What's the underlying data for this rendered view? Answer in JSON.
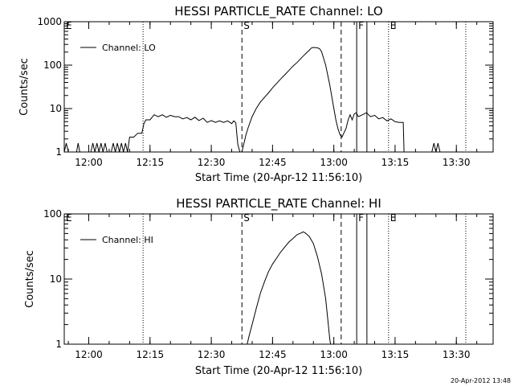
{
  "footer_timestamp": "20-Apr-2012 13:48",
  "chart_data": [
    {
      "type": "line",
      "title": "HESSI PARTICLE_RATE Channel: LO",
      "xlabel": "Start Time (20-Apr-12 11:56:10)",
      "ylabel": "Counts/sec",
      "y_scale": "log",
      "ylim": [
        1,
        1000
      ],
      "xlim_minutes": [
        -6,
        99
      ],
      "x_ticks": [
        {
          "label": "12:00",
          "minutes": 0
        },
        {
          "label": "12:15",
          "minutes": 15
        },
        {
          "label": "12:30",
          "minutes": 30
        },
        {
          "label": "12:45",
          "minutes": 45
        },
        {
          "label": "13:00",
          "minutes": 60
        },
        {
          "label": "13:15",
          "minutes": 75
        },
        {
          "label": "13:30",
          "minutes": 90
        }
      ],
      "y_ticks": [
        {
          "label": "1",
          "value": 1
        },
        {
          "label": "10",
          "value": 10
        },
        {
          "label": "100",
          "value": 100
        },
        {
          "label": "1000",
          "value": 1000
        }
      ],
      "grid": false,
      "legend": {
        "position": "top-left",
        "entries": [
          "Channel: LO"
        ]
      },
      "markers": [
        {
          "label": "E",
          "minutes": -6,
          "style": "dotted"
        },
        {
          "label": "",
          "minutes": 13.3,
          "style": "dotted"
        },
        {
          "label": "S",
          "minutes": 37.5,
          "style": "dashed"
        },
        {
          "label": "",
          "minutes": 61.8,
          "style": "dashed"
        },
        {
          "label": "F",
          "minutes": 65.6,
          "style": "solid"
        },
        {
          "label": "",
          "minutes": 68.1,
          "style": "solid"
        },
        {
          "label": "E",
          "minutes": 73.4,
          "style": "dotted"
        },
        {
          "label": "",
          "minutes": 92.3,
          "style": "dotted"
        }
      ],
      "series": [
        {
          "name": "Channel: LO",
          "points": [
            [
              -6,
              1
            ],
            [
              -5.5,
              1.6
            ],
            [
              -5,
              1
            ],
            [
              -3,
              1
            ],
            [
              -2.6,
              1.6
            ],
            [
              -2.2,
              1
            ],
            [
              0.5,
              1
            ],
            [
              1,
              1.6
            ],
            [
              1.5,
              1
            ],
            [
              2,
              1.6
            ],
            [
              2.5,
              1
            ],
            [
              3,
              1.6
            ],
            [
              3.5,
              1
            ],
            [
              4,
              1.6
            ],
            [
              4.5,
              1
            ],
            [
              5.5,
              1
            ],
            [
              6,
              1.6
            ],
            [
              6.5,
              1
            ],
            [
              7,
              1.6
            ],
            [
              7.5,
              1
            ],
            [
              8,
              1.6
            ],
            [
              8.5,
              1
            ],
            [
              9,
              1.6
            ],
            [
              9.5,
              1
            ],
            [
              10,
              2.2
            ],
            [
              11,
              2.2
            ],
            [
              12,
              2.7
            ],
            [
              13,
              2.7
            ],
            [
              13.5,
              4.5
            ],
            [
              14,
              5.5
            ],
            [
              15,
              5.5
            ],
            [
              16,
              7.2
            ],
            [
              17,
              6.5
            ],
            [
              18,
              7.2
            ],
            [
              19,
              6.3
            ],
            [
              20,
              7
            ],
            [
              21,
              6.5
            ],
            [
              22,
              6.5
            ],
            [
              23,
              5.8
            ],
            [
              24,
              6.2
            ],
            [
              25,
              5.5
            ],
            [
              26,
              6.3
            ],
            [
              27,
              5.3
            ],
            [
              28,
              6
            ],
            [
              29,
              4.8
            ],
            [
              30,
              5.3
            ],
            [
              31,
              4.8
            ],
            [
              32,
              5.2
            ],
            [
              33,
              4.8
            ],
            [
              34,
              5.2
            ],
            [
              35,
              4.5
            ],
            [
              35.5,
              5.2
            ],
            [
              36,
              4.7
            ],
            [
              36.5,
              1.5
            ],
            [
              37,
              1
            ],
            [
              37.5,
              1
            ],
            [
              38,
              1.6
            ],
            [
              38.5,
              2.5
            ],
            [
              39,
              3.6
            ],
            [
              40,
              6.5
            ],
            [
              41,
              10
            ],
            [
              42,
              14
            ],
            [
              43,
              18
            ],
            [
              44,
              23
            ],
            [
              45,
              30
            ],
            [
              46,
              38
            ],
            [
              47,
              48
            ],
            [
              48,
              60
            ],
            [
              49,
              75
            ],
            [
              50,
              95
            ],
            [
              51,
              115
            ],
            [
              52,
              145
            ],
            [
              53,
              180
            ],
            [
              54,
              220
            ],
            [
              54.5,
              248
            ],
            [
              55,
              255
            ],
            [
              56,
              250
            ],
            [
              56.5,
              240
            ],
            [
              57,
              205
            ],
            [
              58,
              100
            ],
            [
              59,
              35
            ],
            [
              60,
              10
            ],
            [
              60.5,
              5.5
            ],
            [
              61,
              3.5
            ],
            [
              61.5,
              2.5
            ],
            [
              62,
              2.2
            ],
            [
              62.5,
              2.8
            ],
            [
              63,
              3.5
            ],
            [
              63.5,
              5.5
            ],
            [
              64,
              7.2
            ],
            [
              64.5,
              5.5
            ],
            [
              65,
              7.5
            ],
            [
              65.5,
              8
            ],
            [
              66,
              6.5
            ],
            [
              67,
              7.2
            ],
            [
              68,
              8
            ],
            [
              69,
              6.5
            ],
            [
              70,
              7
            ],
            [
              71,
              5.8
            ],
            [
              72,
              6.2
            ],
            [
              73,
              5.2
            ],
            [
              74,
              5.8
            ],
            [
              75,
              5
            ],
            [
              76,
              4.8
            ],
            [
              77,
              4.8
            ],
            [
              77.2,
              1
            ],
            [
              79,
              1
            ],
            [
              80,
              1
            ],
            [
              84,
              1
            ],
            [
              84.5,
              1.6
            ],
            [
              85,
              1
            ],
            [
              85.5,
              1.6
            ],
            [
              86,
              1
            ],
            [
              99,
              1
            ]
          ]
        }
      ]
    },
    {
      "type": "line",
      "title": "HESSI PARTICLE_RATE Channel: HI",
      "xlabel": "Start Time (20-Apr-12 11:56:10)",
      "ylabel": "Counts/sec",
      "y_scale": "log",
      "ylim": [
        1,
        100
      ],
      "xlim_minutes": [
        -6,
        99
      ],
      "x_ticks": [
        {
          "label": "12:00",
          "minutes": 0
        },
        {
          "label": "12:15",
          "minutes": 15
        },
        {
          "label": "12:30",
          "minutes": 30
        },
        {
          "label": "12:45",
          "minutes": 45
        },
        {
          "label": "13:00",
          "minutes": 60
        },
        {
          "label": "13:15",
          "minutes": 75
        },
        {
          "label": "13:30",
          "minutes": 90
        }
      ],
      "y_ticks": [
        {
          "label": "1",
          "value": 1
        },
        {
          "label": "10",
          "value": 10
        },
        {
          "label": "100",
          "value": 100
        }
      ],
      "grid": false,
      "legend": {
        "position": "top-left",
        "entries": [
          "Channel: HI"
        ]
      },
      "markers": [
        {
          "label": "E",
          "minutes": -6,
          "style": "dotted"
        },
        {
          "label": "",
          "minutes": 13.3,
          "style": "dotted"
        },
        {
          "label": "S",
          "minutes": 37.5,
          "style": "dashed"
        },
        {
          "label": "",
          "minutes": 61.8,
          "style": "dashed"
        },
        {
          "label": "F",
          "minutes": 65.6,
          "style": "solid"
        },
        {
          "label": "",
          "minutes": 68.1,
          "style": "solid"
        },
        {
          "label": "E",
          "minutes": 73.4,
          "style": "dotted"
        },
        {
          "label": "",
          "minutes": 92.3,
          "style": "dotted"
        }
      ],
      "series": [
        {
          "name": "Channel: HI",
          "points": [
            [
              38.8,
              1
            ],
            [
              39.2,
              1.3
            ],
            [
              40,
              2
            ],
            [
              41,
              3.5
            ],
            [
              42,
              6
            ],
            [
              43,
              9
            ],
            [
              44,
              13
            ],
            [
              45,
              17
            ],
            [
              46,
              21
            ],
            [
              47,
              26
            ],
            [
              48,
              31
            ],
            [
              49,
              37
            ],
            [
              50,
              42
            ],
            [
              51,
              48
            ],
            [
              52,
              51
            ],
            [
              52.5,
              53
            ],
            [
              53,
              51
            ],
            [
              54,
              45
            ],
            [
              55,
              35
            ],
            [
              56,
              22
            ],
            [
              57,
              12
            ],
            [
              58,
              5
            ],
            [
              58.5,
              2.5
            ],
            [
              59,
              1.2
            ],
            [
              59.2,
              1
            ]
          ]
        }
      ]
    }
  ]
}
